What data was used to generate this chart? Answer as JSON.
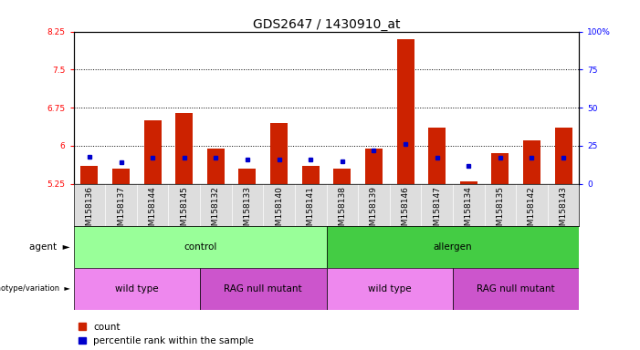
{
  "title": "GDS2647 / 1430910_at",
  "samples": [
    "GSM158136",
    "GSM158137",
    "GSM158144",
    "GSM158145",
    "GSM158132",
    "GSM158133",
    "GSM158140",
    "GSM158141",
    "GSM158138",
    "GSM158139",
    "GSM158146",
    "GSM158147",
    "GSM158134",
    "GSM158135",
    "GSM158142",
    "GSM158143"
  ],
  "count_values": [
    5.6,
    5.55,
    6.5,
    6.65,
    5.95,
    5.55,
    6.45,
    5.6,
    5.55,
    5.95,
    8.1,
    6.35,
    5.3,
    5.85,
    6.1,
    6.35
  ],
  "percentile_values": [
    18,
    14,
    17,
    17,
    17,
    16,
    16,
    16,
    15,
    22,
    26,
    17,
    12,
    17,
    17,
    17
  ],
  "ylim_left": [
    5.25,
    8.25
  ],
  "ylim_right": [
    0,
    100
  ],
  "yticks_left": [
    5.25,
    6.0,
    6.75,
    7.5,
    8.25
  ],
  "yticks_right": [
    0,
    25,
    50,
    75,
    100
  ],
  "ytick_labels_left": [
    "5.25",
    "6",
    "6.75",
    "7.5",
    "8.25"
  ],
  "ytick_labels_right": [
    "0",
    "25",
    "50",
    "75",
    "100%"
  ],
  "baseline": 5.25,
  "bar_color": "#cc2200",
  "marker_color": "#0000cc",
  "agent_groups": [
    {
      "label": "control",
      "start": 0,
      "end": 8,
      "color": "#99ff99"
    },
    {
      "label": "allergen",
      "start": 8,
      "end": 16,
      "color": "#44cc44"
    }
  ],
  "genotype_groups": [
    {
      "label": "wild type",
      "start": 0,
      "end": 4,
      "color": "#ee88ee"
    },
    {
      "label": "RAG null mutant",
      "start": 4,
      "end": 8,
      "color": "#cc55cc"
    },
    {
      "label": "wild type",
      "start": 8,
      "end": 12,
      "color": "#ee88ee"
    },
    {
      "label": "RAG null mutant",
      "start": 12,
      "end": 16,
      "color": "#cc55cc"
    }
  ],
  "legend_items": [
    "count",
    "percentile rank within the sample"
  ],
  "title_fontsize": 10,
  "tick_fontsize": 6.5,
  "label_fontsize": 7.5,
  "row_label_fontsize": 7.5
}
